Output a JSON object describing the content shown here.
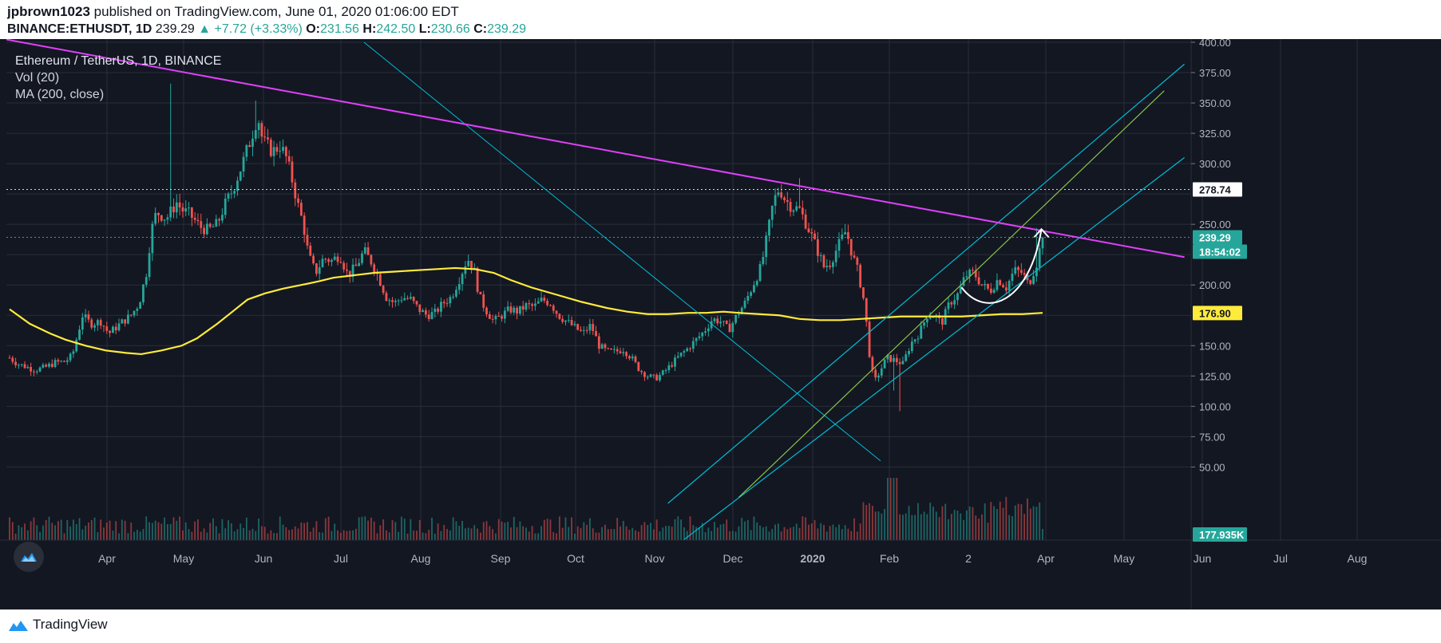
{
  "header": {
    "user": "jpbrown1023",
    "published": "published on TradingView.com, June 01, 2020 01:06:00 EDT",
    "symbol": "BINANCE:ETHUSDT, 1D",
    "last": "239.29",
    "change": "+7.72 (+3.33%)",
    "o_label": "O:",
    "o": "231.56",
    "h_label": "H:",
    "h": "242.50",
    "l_label": "L:",
    "l": "230.66",
    "c_label": "C:",
    "c": "239.29"
  },
  "legend": {
    "title": "Ethereum / TetherUS, 1D, BINANCE",
    "vol": "Vol (20)",
    "ma": "MA (200, close)"
  },
  "footer": {
    "brand": "TradingView"
  },
  "colors": {
    "background": "#131722",
    "up": "#26a69a",
    "down": "#ef5350",
    "ma": "#ffeb3b",
    "resistance": "#e040fb",
    "channel": "#00bcd4",
    "trend": "#4caf50",
    "grid": "#2a2e39"
  },
  "chart_data": {
    "type": "candlestick",
    "title": "Ethereum / TetherUS, 1D, BINANCE",
    "yticks": [
      50,
      75,
      100,
      125,
      150,
      175,
      200,
      225,
      250,
      275,
      300,
      325,
      350,
      375,
      400
    ],
    "ytick_labels": [
      "50.00",
      "75.00",
      "100.00",
      "125.00",
      "150.00",
      "",
      "200.00",
      "",
      "250.00",
      "",
      "300.00",
      "325.00",
      "350.00",
      "375.00",
      "400.00"
    ],
    "ylim": [
      35,
      402
    ],
    "x_months": [
      "Apr",
      "May",
      "Jun",
      "Jul",
      "Aug",
      "Sep",
      "Oct",
      "Nov",
      "Dec",
      "2020",
      "Feb",
      "2",
      "Apr",
      "May",
      "Jun",
      "Jul",
      "Aug"
    ],
    "price_badges": [
      {
        "label": "278.74",
        "value": 278.74,
        "kind": "level"
      },
      {
        "label": "239.29",
        "value": 239.29,
        "kind": "last"
      },
      {
        "label": "18:54:02",
        "value": 228,
        "kind": "countdown"
      },
      {
        "label": "176.90",
        "value": 176.9,
        "kind": "ma"
      },
      {
        "label": "177.935K",
        "value": null,
        "kind": "volume"
      }
    ],
    "close_path": [
      [
        0,
        140
      ],
      [
        8,
        135
      ],
      [
        15,
        133
      ],
      [
        25,
        130
      ],
      [
        35,
        132
      ],
      [
        45,
        136
      ],
      [
        55,
        137
      ],
      [
        62,
        142
      ],
      [
        72,
        175
      ],
      [
        80,
        168
      ],
      [
        90,
        170
      ],
      [
        98,
        160
      ],
      [
        105,
        165
      ],
      [
        112,
        170
      ],
      [
        120,
        175
      ],
      [
        128,
        185
      ],
      [
        135,
        210
      ],
      [
        140,
        245
      ],
      [
        145,
        260
      ],
      [
        155,
        255
      ],
      [
        165,
        268
      ],
      [
        170,
        262
      ],
      [
        178,
        258
      ],
      [
        188,
        248
      ],
      [
        196,
        245
      ],
      [
        205,
        250
      ],
      [
        212,
        265
      ],
      [
        220,
        278
      ],
      [
        230,
        300
      ],
      [
        238,
        320
      ],
      [
        245,
        340
      ],
      [
        250,
        318
      ],
      [
        260,
        310
      ],
      [
        267,
        315
      ],
      [
        273,
        305
      ],
      [
        278,
        290
      ],
      [
        285,
        265
      ],
      [
        290,
        250
      ],
      [
        295,
        225
      ],
      [
        302,
        210
      ],
      [
        310,
        222
      ],
      [
        318,
        220
      ],
      [
        326,
        225
      ],
      [
        334,
        208
      ],
      [
        342,
        215
      ],
      [
        350,
        228
      ],
      [
        358,
        218
      ],
      [
        365,
        205
      ],
      [
        372,
        190
      ],
      [
        380,
        185
      ],
      [
        388,
        190
      ],
      [
        396,
        188
      ],
      [
        404,
        180
      ],
      [
        412,
        175
      ],
      [
        420,
        177
      ],
      [
        428,
        185
      ],
      [
        436,
        190
      ],
      [
        444,
        205
      ],
      [
        452,
        222
      ],
      [
        458,
        215
      ],
      [
        464,
        190
      ],
      [
        470,
        180
      ],
      [
        478,
        170
      ],
      [
        486,
        175
      ],
      [
        494,
        180
      ],
      [
        502,
        178
      ],
      [
        510,
        183
      ],
      [
        518,
        182
      ],
      [
        526,
        188
      ],
      [
        534,
        185
      ],
      [
        542,
        175
      ],
      [
        550,
        170
      ],
      [
        558,
        165
      ],
      [
        566,
        160
      ],
      [
        574,
        167
      ],
      [
        582,
        150
      ],
      [
        590,
        145
      ],
      [
        598,
        145
      ],
      [
        606,
        147
      ],
      [
        614,
        140
      ],
      [
        622,
        130
      ],
      [
        630,
        125
      ],
      [
        638,
        123
      ],
      [
        646,
        128
      ],
      [
        654,
        135
      ],
      [
        662,
        142
      ],
      [
        670,
        148
      ],
      [
        678,
        155
      ],
      [
        686,
        162
      ],
      [
        694,
        172
      ],
      [
        702,
        170
      ],
      [
        710,
        163
      ],
      [
        718,
        175
      ],
      [
        726,
        185
      ],
      [
        734,
        200
      ],
      [
        742,
        215
      ],
      [
        748,
        240
      ],
      [
        754,
        268
      ],
      [
        760,
        280
      ],
      [
        766,
        270
      ],
      [
        772,
        265
      ],
      [
        780,
        262
      ],
      [
        788,
        248
      ],
      [
        796,
        232
      ],
      [
        804,
        215
      ],
      [
        810,
        218
      ],
      [
        818,
        232
      ],
      [
        826,
        245
      ],
      [
        832,
        225
      ],
      [
        838,
        210
      ],
      [
        844,
        185
      ],
      [
        850,
        135
      ],
      [
        854,
        120
      ],
      [
        860,
        130
      ],
      [
        866,
        140
      ],
      [
        874,
        138
      ],
      [
        882,
        135
      ],
      [
        890,
        152
      ],
      [
        898,
        160
      ],
      [
        906,
        175
      ],
      [
        914,
        175
      ],
      [
        920,
        168
      ],
      [
        928,
        185
      ],
      [
        936,
        192
      ],
      [
        944,
        208
      ],
      [
        952,
        210
      ],
      [
        960,
        200
      ],
      [
        968,
        195
      ],
      [
        976,
        205
      ],
      [
        984,
        198
      ],
      [
        992,
        212
      ],
      [
        1000,
        210
      ],
      [
        1006,
        200
      ],
      [
        1014,
        218
      ],
      [
        1020,
        239.29
      ]
    ],
    "ma200_path": [
      [
        0,
        180
      ],
      [
        20,
        168
      ],
      [
        40,
        160
      ],
      [
        55,
        155
      ],
      [
        75,
        150
      ],
      [
        95,
        146
      ],
      [
        115,
        144
      ],
      [
        130,
        143
      ],
      [
        150,
        146
      ],
      [
        170,
        150
      ],
      [
        185,
        156
      ],
      [
        205,
        168
      ],
      [
        220,
        178
      ],
      [
        235,
        188
      ],
      [
        252,
        193
      ],
      [
        270,
        197
      ],
      [
        288,
        200
      ],
      [
        305,
        203
      ],
      [
        320,
        206
      ],
      [
        340,
        208
      ],
      [
        360,
        210
      ],
      [
        380,
        211
      ],
      [
        400,
        212
      ],
      [
        420,
        213
      ],
      [
        440,
        214
      ],
      [
        460,
        213
      ],
      [
        478,
        210
      ],
      [
        495,
        204
      ],
      [
        515,
        198
      ],
      [
        540,
        192
      ],
      [
        565,
        186
      ],
      [
        590,
        181
      ],
      [
        610,
        178
      ],
      [
        630,
        176
      ],
      [
        650,
        176
      ],
      [
        670,
        177
      ],
      [
        688,
        177
      ],
      [
        705,
        178
      ],
      [
        720,
        177
      ],
      [
        740,
        176
      ],
      [
        760,
        175
      ],
      [
        780,
        172
      ],
      [
        800,
        171
      ],
      [
        820,
        171
      ],
      [
        840,
        172
      ],
      [
        860,
        173
      ],
      [
        880,
        174
      ],
      [
        900,
        174
      ],
      [
        920,
        174
      ],
      [
        940,
        174
      ],
      [
        960,
        175
      ],
      [
        980,
        176
      ],
      [
        1000,
        176
      ],
      [
        1020,
        177
      ]
    ],
    "spikes": [
      [
        158,
        366
      ],
      [
        244,
        352
      ],
      [
        780,
        288
      ],
      [
        872,
        113
      ],
      [
        880,
        96
      ],
      [
        1015,
        247
      ]
    ],
    "horizontal_level": 278.74,
    "current_price": 239.29,
    "annotations": {
      "resistance": [
        [
          -40,
          408
        ],
        [
          1160,
          223
        ]
      ],
      "falling_line": [
        [
          350,
          400
        ],
        [
          860,
          55
        ]
      ],
      "channel_upper": [
        [
          650,
          20
        ],
        [
          1160,
          382
        ]
      ],
      "channel_lower": [
        [
          650,
          -20
        ],
        [
          1160,
          305
        ]
      ],
      "trendline": [
        [
          720,
          25
        ],
        [
          1140,
          360
        ]
      ]
    }
  }
}
